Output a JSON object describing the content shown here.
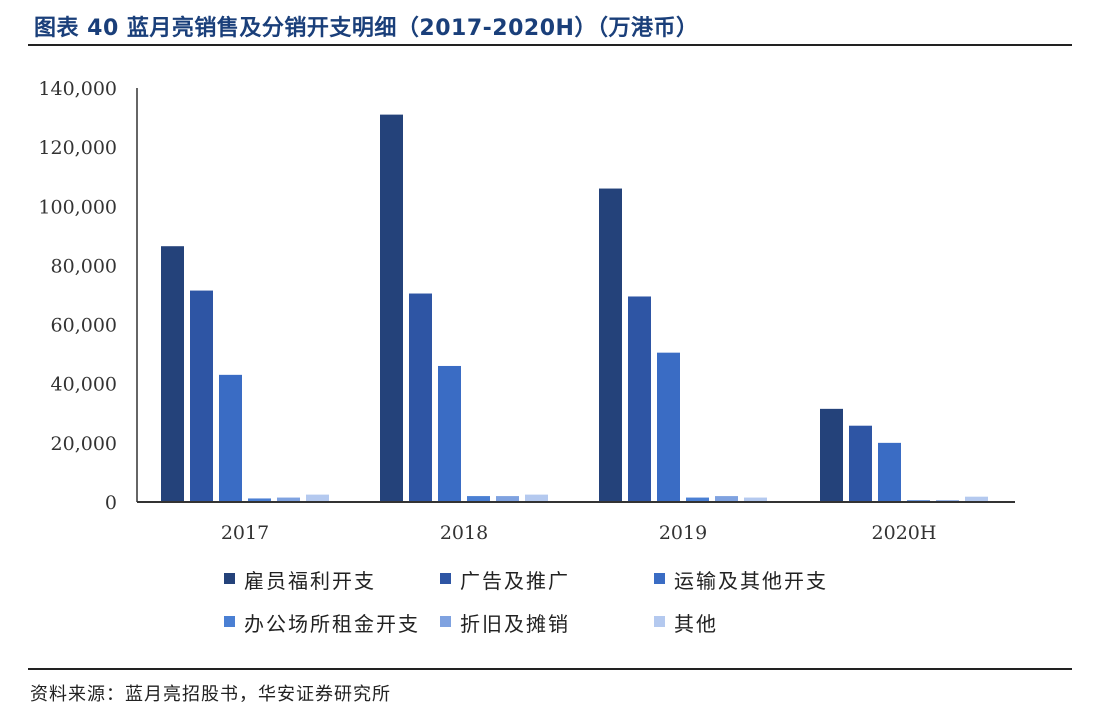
{
  "title": "图表 40  蓝月亮销售及分销开支明细（2017-2020H）（万港币）",
  "source": "资料来源：蓝月亮招股书，华安证券研究所",
  "colors": {
    "title": "#1a3f7a",
    "series": [
      "#24427a",
      "#2e55a4",
      "#3a6cc4",
      "#4a7fd3",
      "#7fa2e0",
      "#b4c9ef"
    ]
  },
  "chart_data": {
    "type": "bar",
    "categories": [
      "2017",
      "2018",
      "2019",
      "2020H"
    ],
    "series": [
      {
        "name": "雇员福利开支",
        "values": [
          86500,
          131000,
          106000,
          31500
        ]
      },
      {
        "name": "广告及推广",
        "values": [
          71500,
          70500,
          69500,
          25800
        ]
      },
      {
        "name": "运输及其他开支",
        "values": [
          43000,
          46000,
          50500,
          20000
        ]
      },
      {
        "name": "办公场所租金开支",
        "values": [
          1200,
          2000,
          1500,
          600
        ]
      },
      {
        "name": "折旧及摊销",
        "values": [
          1500,
          2000,
          2000,
          600
        ]
      },
      {
        "name": "其他",
        "values": [
          2500,
          2500,
          1500,
          1800
        ]
      }
    ],
    "ylim": [
      0,
      140000
    ],
    "yticks": [
      "0",
      "20,000",
      "40,000",
      "60,000",
      "80,000",
      "100,000",
      "120,000",
      "140,000"
    ],
    "grid": false,
    "legend": "bottom"
  }
}
